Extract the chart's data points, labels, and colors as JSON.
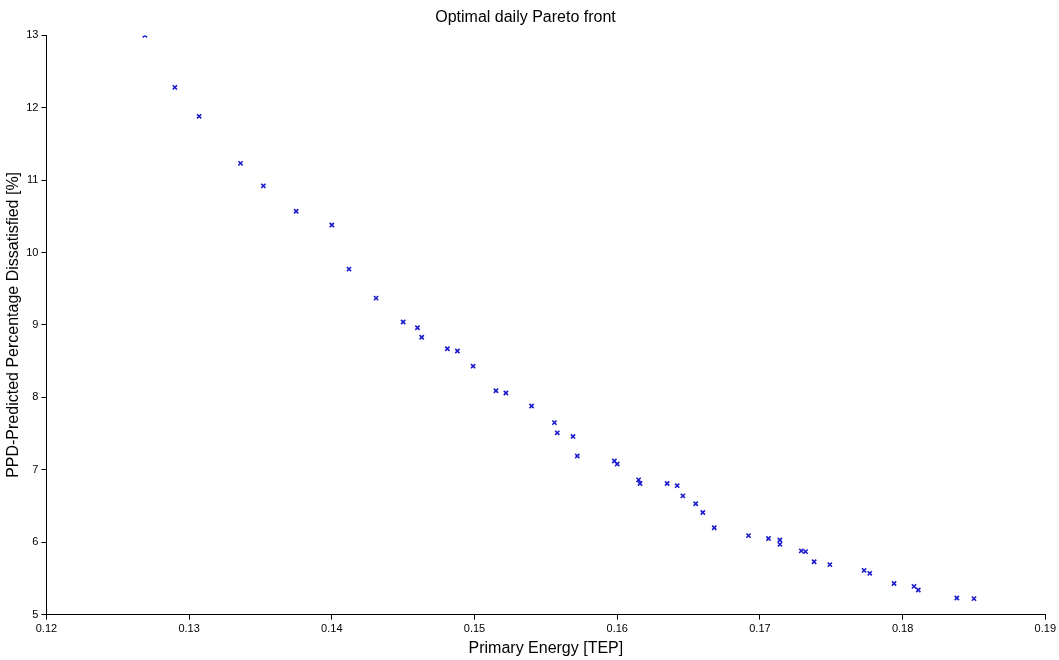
{
  "chart_data": {
    "type": "scatter",
    "title": "Optimal daily Pareto front",
    "xlabel": "Primary Energy [TEP]",
    "ylabel": "PPD-Predicted Percentage Dissatisfied [%]",
    "xlim": [
      0.12,
      0.19
    ],
    "xticks": [
      0.12,
      0.13,
      0.14,
      0.15,
      0.16,
      0.17,
      0.18,
      0.19
    ],
    "ylim": [
      5,
      13
    ],
    "yticks": [
      5,
      6,
      7,
      8,
      9,
      10,
      11,
      12,
      13
    ],
    "grid": false,
    "legend": false,
    "marker": "cross",
    "series": [
      {
        "color": "#1a1acc",
        "x": [
          0.1269,
          0.129,
          0.1307,
          0.1336,
          0.1352,
          0.1375,
          0.14,
          0.1412,
          0.1431,
          0.145,
          0.146,
          0.1463,
          0.1481,
          0.1488,
          0.1499,
          0.1515,
          0.1522,
          0.154,
          0.1556,
          0.1558,
          0.1569,
          0.1572,
          0.1598,
          0.16,
          0.1615,
          0.1616,
          0.1635,
          0.1642,
          0.1646,
          0.1655,
          0.166,
          0.1668,
          0.1692,
          0.1706,
          0.1714,
          0.1714,
          0.1729,
          0.1732,
          0.1738,
          0.1749,
          0.1773,
          0.1777,
          0.1794,
          0.1808,
          0.1811,
          0.1838,
          0.185
        ],
        "values": [
          13.0,
          12.28,
          11.88,
          11.23,
          10.92,
          10.57,
          10.38,
          9.77,
          9.37,
          9.04,
          8.96,
          8.83,
          8.67,
          8.64,
          8.43,
          8.09,
          8.06,
          7.88,
          7.65,
          7.51,
          7.46,
          7.19,
          7.12,
          7.08,
          6.86,
          6.81,
          6.81,
          6.78,
          6.64,
          6.53,
          6.41,
          6.2,
          6.09,
          6.05,
          6.03,
          5.97,
          5.88,
          5.87,
          5.73,
          5.69,
          5.61,
          5.57,
          5.43,
          5.39,
          5.34,
          5.23,
          5.22
        ]
      }
    ]
  }
}
